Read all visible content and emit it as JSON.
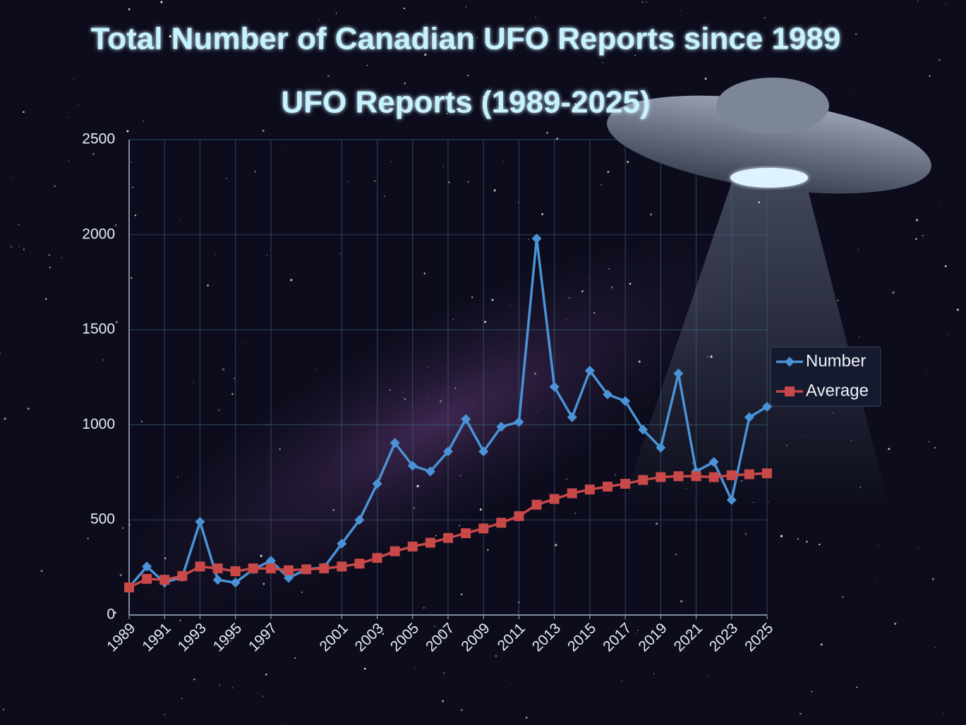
{
  "chart_data": {
    "type": "line",
    "title": "Total Number of Canadian UFO Reports since 1989",
    "subtitle": "UFO Reports (1989-2025)",
    "x": [
      1989,
      1990,
      1991,
      1992,
      1993,
      1994,
      1995,
      1996,
      1997,
      1998,
      1999,
      2000,
      2001,
      2002,
      2003,
      2004,
      2005,
      2006,
      2007,
      2008,
      2009,
      2010,
      2011,
      2012,
      2013,
      2014,
      2015,
      2016,
      2017,
      2018,
      2019,
      2020,
      2021,
      2022,
      2023,
      2024,
      2025
    ],
    "series": [
      {
        "name": "Number",
        "color": "#4a93d6",
        "marker": "diamond",
        "values": [
          145,
          255,
          170,
          200,
          490,
          185,
          170,
          240,
          285,
          195,
          240,
          250,
          375,
          500,
          690,
          905,
          785,
          755,
          860,
          1030,
          860,
          990,
          1015,
          1980,
          1200,
          1040,
          1285,
          1160,
          1125,
          975,
          880,
          1270,
          755,
          805,
          605,
          1040,
          1095
        ]
      },
      {
        "name": "Average",
        "color": "#c94848",
        "marker": "square",
        "values": [
          145,
          190,
          185,
          205,
          255,
          245,
          230,
          245,
          245,
          235,
          240,
          245,
          255,
          270,
          300,
          335,
          360,
          380,
          405,
          430,
          455,
          485,
          520,
          580,
          610,
          640,
          660,
          675,
          690,
          710,
          725,
          730,
          730,
          725,
          735,
          740,
          745
        ]
      }
    ],
    "xlim": [
      1989,
      2025
    ],
    "xticks": [
      1989,
      1991,
      1993,
      1995,
      1997,
      2001,
      2003,
      2005,
      2007,
      2009,
      2011,
      2013,
      2015,
      2017,
      2019,
      2021,
      2023,
      2025
    ],
    "ylim": [
      0,
      2500
    ],
    "yticks": [
      0,
      500,
      1000,
      1500,
      2000,
      2500
    ],
    "grid": true,
    "legend": "right"
  }
}
